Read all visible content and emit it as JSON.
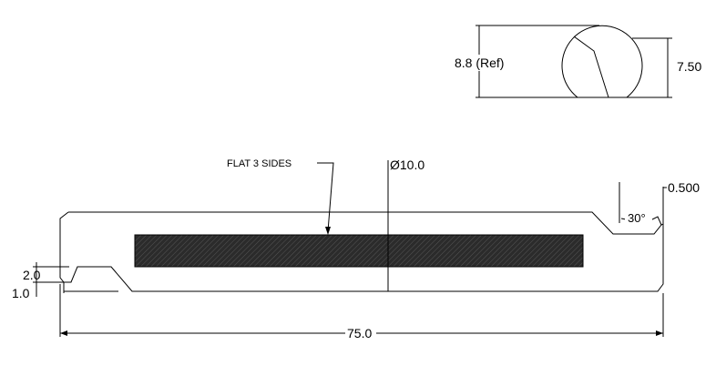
{
  "drawing": {
    "end_view": {
      "ref_dim": "8.8 (Ref)",
      "flat_dim": "7.50"
    },
    "side_view": {
      "note": "FLAT 3 SIDES",
      "diameter_dim": "Ø10.0",
      "chamfer_dim": "0.500",
      "angle_dim": "30°",
      "left_depth_dim": "2.0",
      "left_step_dim": "1.0",
      "length_dim": "75.0"
    }
  },
  "colors": {
    "line": "#000000",
    "hatch_fill": "#2b2b2b",
    "background": "#ffffff"
  }
}
